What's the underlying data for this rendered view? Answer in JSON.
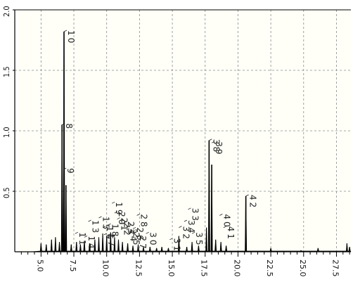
{
  "chart_data": {
    "type": "line",
    "title": "",
    "xlabel": "",
    "ylabel": "",
    "xlim": [
      3.0,
      28.6
    ],
    "ylim": [
      0.0,
      2.0
    ],
    "grid": true,
    "colors": {
      "background": "#fffff8",
      "trace": "#000000",
      "grid": "#8a8a8a",
      "label_line": "#222222"
    },
    "x_ticks": [
      "5.0",
      "7.5",
      "10.0",
      "12.5",
      "15.0",
      "17.5",
      "20.0",
      "22.5",
      "25.0",
      "27.5"
    ],
    "x_tick_values": [
      5.0,
      7.5,
      10.0,
      12.5,
      15.0,
      17.5,
      20.0,
      22.5,
      25.0,
      27.5
    ],
    "y_ticks": [
      "2.0",
      "1.5",
      "1.0",
      "0.5"
    ],
    "y_tick_values": [
      2.0,
      1.5,
      1.0,
      0.5
    ],
    "peaks": [
      {
        "x": 5.0,
        "y": 0.07
      },
      {
        "x": 5.4,
        "y": 0.06
      },
      {
        "x": 5.8,
        "y": 0.1
      },
      {
        "x": 6.1,
        "y": 0.12
      },
      {
        "x": 6.4,
        "y": 0.08
      },
      {
        "x": 6.6,
        "y": 1.05
      },
      {
        "x": 6.75,
        "y": 1.82
      },
      {
        "x": 6.9,
        "y": 0.55
      },
      {
        "x": 7.3,
        "y": 0.06
      },
      {
        "x": 7.7,
        "y": 0.08
      },
      {
        "x": 8.0,
        "y": 0.06
      },
      {
        "x": 8.3,
        "y": 0.09
      },
      {
        "x": 8.7,
        "y": 0.07
      },
      {
        "x": 9.1,
        "y": 0.1
      },
      {
        "x": 9.4,
        "y": 0.12
      },
      {
        "x": 9.7,
        "y": 0.15
      },
      {
        "x": 10.0,
        "y": 0.13
      },
      {
        "x": 10.3,
        "y": 0.16
      },
      {
        "x": 10.6,
        "y": 0.12
      },
      {
        "x": 10.9,
        "y": 0.1
      },
      {
        "x": 11.2,
        "y": 0.08
      },
      {
        "x": 11.6,
        "y": 0.07
      },
      {
        "x": 12.0,
        "y": 0.05
      },
      {
        "x": 12.4,
        "y": 0.06
      },
      {
        "x": 12.8,
        "y": 0.04
      },
      {
        "x": 13.3,
        "y": 0.04
      },
      {
        "x": 13.8,
        "y": 0.03
      },
      {
        "x": 14.2,
        "y": 0.04
      },
      {
        "x": 14.7,
        "y": 0.03
      },
      {
        "x": 15.5,
        "y": 0.13
      },
      {
        "x": 16.1,
        "y": 0.04
      },
      {
        "x": 16.5,
        "y": 0.08
      },
      {
        "x": 17.0,
        "y": 0.05
      },
      {
        "x": 17.6,
        "y": 0.2
      },
      {
        "x": 17.8,
        "y": 0.92
      },
      {
        "x": 18.0,
        "y": 0.72
      },
      {
        "x": 18.3,
        "y": 0.1
      },
      {
        "x": 18.7,
        "y": 0.08
      },
      {
        "x": 19.1,
        "y": 0.05
      },
      {
        "x": 20.6,
        "y": 0.46
      },
      {
        "x": 22.5,
        "y": 0.03
      },
      {
        "x": 24.8,
        "y": 0.01
      },
      {
        "x": 26.1,
        "y": 0.03
      },
      {
        "x": 28.3,
        "y": 0.07
      },
      {
        "x": 28.5,
        "y": 0.04
      }
    ],
    "peak_labels": [
      {
        "text": "10",
        "x": 6.75,
        "y": 1.82
      },
      {
        "text": "8",
        "x": 6.6,
        "y": 1.05
      },
      {
        "text": "9",
        "x": 6.7,
        "y": 0.68
      },
      {
        "text": "38",
        "x": 17.8,
        "y": 0.92
      },
      {
        "text": "39",
        "x": 18.0,
        "y": 0.9
      },
      {
        "text": "42",
        "x": 20.6,
        "y": 0.46
      },
      {
        "text": "19",
        "x": 10.4,
        "y": 0.4
      },
      {
        "text": "33",
        "x": 16.2,
        "y": 0.35
      },
      {
        "text": "28",
        "x": 12.3,
        "y": 0.3
      },
      {
        "text": "40",
        "x": 18.6,
        "y": 0.3
      },
      {
        "text": "41",
        "x": 18.9,
        "y": 0.2
      },
      {
        "text": "34",
        "x": 15.9,
        "y": 0.25
      },
      {
        "text": "35",
        "x": 16.5,
        "y": 0.15
      },
      {
        "text": "30",
        "x": 13.0,
        "y": 0.15
      },
      {
        "text": "31",
        "x": 14.8,
        "y": 0.1
      },
      {
        "text": "32",
        "x": 15.5,
        "y": 0.2
      },
      {
        "text": "13",
        "x": 8.6,
        "y": 0.25
      },
      {
        "text": "11",
        "x": 7.6,
        "y": 0.15
      },
      {
        "text": "14",
        "x": 8.3,
        "y": 0.12
      },
      {
        "text": "15",
        "x": 9.4,
        "y": 0.28
      },
      {
        "text": "16",
        "x": 9.7,
        "y": 0.2
      },
      {
        "text": "17",
        "x": 9.8,
        "y": 0.14
      },
      {
        "text": "18",
        "x": 10.1,
        "y": 0.22
      },
      {
        "text": "20",
        "x": 10.6,
        "y": 0.32
      },
      {
        "text": "21",
        "x": 10.8,
        "y": 0.27
      },
      {
        "text": "22",
        "x": 11.0,
        "y": 0.23
      },
      {
        "text": "23",
        "x": 11.3,
        "y": 0.24
      },
      {
        "text": "24",
        "x": 11.5,
        "y": 0.18
      },
      {
        "text": "25",
        "x": 11.7,
        "y": 0.15
      },
      {
        "text": "26",
        "x": 12.0,
        "y": 0.19
      },
      {
        "text": "27",
        "x": 12.2,
        "y": 0.12
      }
    ]
  }
}
